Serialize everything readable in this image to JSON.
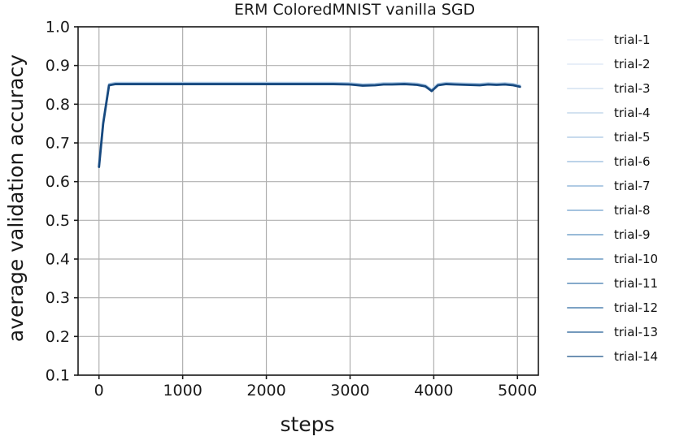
{
  "chart_data": {
    "type": "line",
    "title": "ERM ColoredMNIST vanilla SGD",
    "xlabel": "steps",
    "ylabel": "average validation accuracy",
    "xlim": [
      -250,
      5250
    ],
    "ylim": [
      0.1,
      1.0
    ],
    "xticks": [
      0,
      1000,
      2000,
      3000,
      4000,
      5000
    ],
    "yticks": [
      0.1,
      0.2,
      0.3,
      0.4,
      0.5,
      0.6,
      0.7,
      0.8,
      0.9,
      1.0
    ],
    "grid": true,
    "legend_position": "right",
    "line_color": "#17497f",
    "underlay_line_color": "#aecbe7",
    "grid_color": "#b0b0b0",
    "axis_color": "#1a1a1a",
    "note": "All 14 trial curves overlap almost exactly; the visible dark curve is the stack of trial-1..trial-14.",
    "x": [
      0,
      50,
      120,
      200,
      400,
      600,
      800,
      1000,
      1200,
      1400,
      1600,
      1800,
      2000,
      2200,
      2400,
      2600,
      2800,
      3000,
      3150,
      3300,
      3400,
      3500,
      3650,
      3800,
      3900,
      3975,
      4050,
      4150,
      4250,
      4400,
      4550,
      4650,
      4750,
      4850,
      4950,
      5030
    ],
    "y": [
      0.638,
      0.75,
      0.849,
      0.852,
      0.852,
      0.852,
      0.852,
      0.852,
      0.852,
      0.852,
      0.852,
      0.852,
      0.852,
      0.852,
      0.852,
      0.852,
      0.852,
      0.851,
      0.848,
      0.849,
      0.851,
      0.851,
      0.852,
      0.85,
      0.846,
      0.834,
      0.849,
      0.852,
      0.851,
      0.85,
      0.849,
      0.851,
      0.85,
      0.851,
      0.849,
      0.845
    ],
    "series": [
      {
        "label": "trial-1",
        "color": "#f1f5fb"
      },
      {
        "label": "trial-2",
        "color": "#e8eff8"
      },
      {
        "label": "trial-3",
        "color": "#dee9f4"
      },
      {
        "label": "trial-4",
        "color": "#d3e2f0"
      },
      {
        "label": "trial-5",
        "color": "#c8dbed"
      },
      {
        "label": "trial-6",
        "color": "#bcd3e9"
      },
      {
        "label": "trial-7",
        "color": "#b0cbe4"
      },
      {
        "label": "trial-8",
        "color": "#a4c3df"
      },
      {
        "label": "trial-9",
        "color": "#99bbd8"
      },
      {
        "label": "trial-10",
        "color": "#8fb3d2"
      },
      {
        "label": "trial-11",
        "color": "#85aacb"
      },
      {
        "label": "trial-12",
        "color": "#7ca2c4"
      },
      {
        "label": "trial-13",
        "color": "#7499bc"
      },
      {
        "label": "trial-14",
        "color": "#6f92b3"
      }
    ]
  }
}
